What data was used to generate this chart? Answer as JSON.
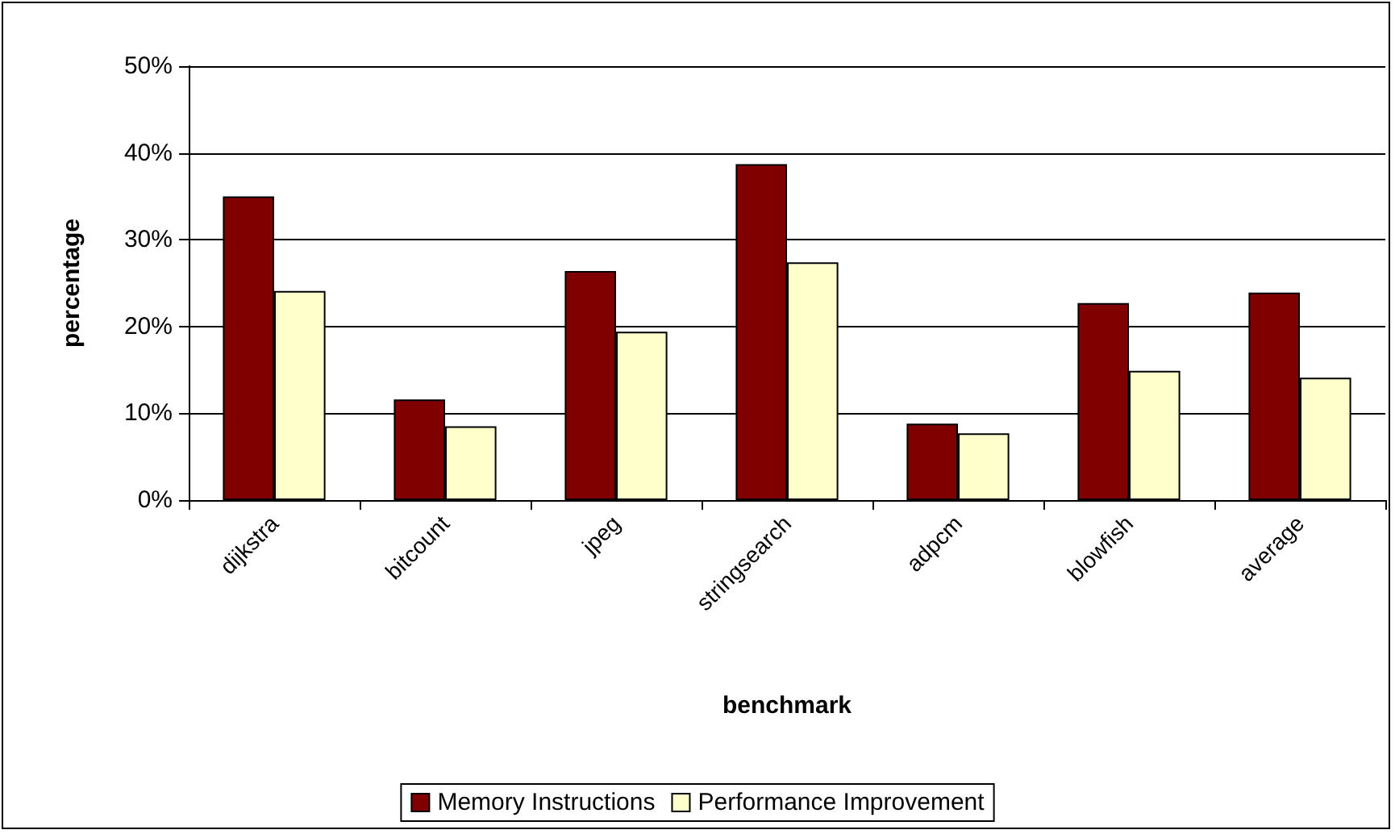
{
  "chart_data": {
    "type": "bar",
    "xlabel": "benchmark",
    "ylabel": "percentage",
    "categories": [
      "dijkstra",
      "bitcount",
      "jpeg",
      "stringsearch",
      "adpcm",
      "blowfish",
      "average"
    ],
    "series": [
      {
        "name": "Memory Instructions",
        "color": "#800000",
        "values": [
          35.0,
          11.6,
          26.4,
          38.7,
          8.8,
          22.7,
          23.9
        ]
      },
      {
        "name": "Performance Improvement",
        "color": "#ffffcc",
        "values": [
          24.1,
          8.5,
          19.4,
          27.4,
          7.7,
          14.9,
          14.1
        ]
      }
    ],
    "ylim": [
      0,
      50
    ],
    "yticks": [
      {
        "value": 0,
        "label": "0%"
      },
      {
        "value": 10,
        "label": "10%"
      },
      {
        "value": 20,
        "label": "20%"
      },
      {
        "value": 30,
        "label": "30%"
      },
      {
        "value": 40,
        "label": "40%"
      },
      {
        "value": 50,
        "label": "50%"
      }
    ],
    "grid": "y",
    "legend": "bottom"
  }
}
